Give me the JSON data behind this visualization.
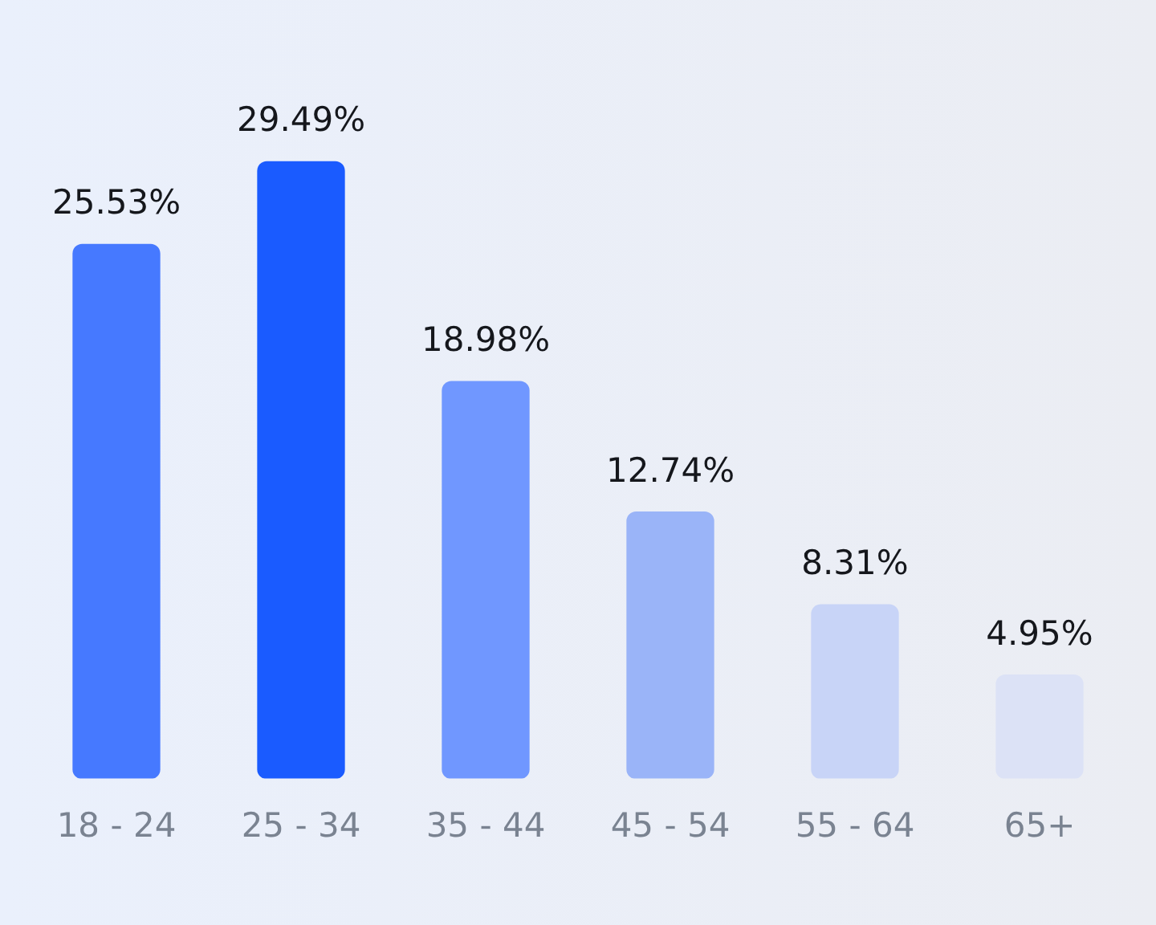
{
  "chart_data": {
    "type": "bar",
    "categories": [
      "18 - 24",
      "25 - 34",
      "35 - 44",
      "45 - 54",
      "55 - 64",
      "65+"
    ],
    "values": [
      25.53,
      29.49,
      18.98,
      12.74,
      8.31,
      4.95
    ],
    "colors": [
      "#4679ff",
      "#1a5bff",
      "#7097ff",
      "#9ab4f8",
      "#c8d4f7",
      "#dce2f6"
    ],
    "value_labels": [
      "25.53%",
      "29.49%",
      "18.98%",
      "12.74%",
      "8.31%",
      "4.95%"
    ],
    "grid": false,
    "legend": false
  }
}
